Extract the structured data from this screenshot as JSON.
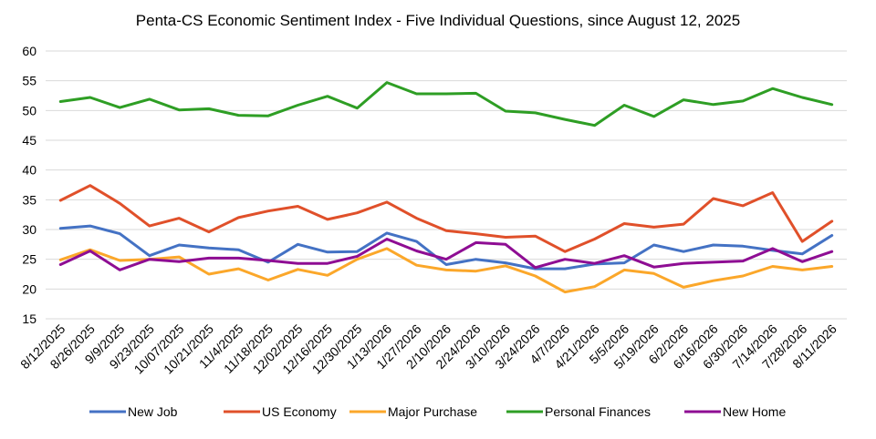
{
  "chart_data": {
    "type": "line",
    "title": "Penta-CS Economic Sentiment Index - Five Individual Questions, since August 12, 2025",
    "xlabel": "",
    "ylabel": "",
    "ylim": [
      15,
      60
    ],
    "yticks": [
      15,
      20,
      25,
      30,
      35,
      40,
      45,
      50,
      55,
      60
    ],
    "grid": true,
    "legend_position": "bottom",
    "categories": [
      "8/12/2025",
      "8/26/2025",
      "9/9/2025",
      "9/23/2025",
      "10/07/2025",
      "10/21/2025",
      "11/4/2025",
      "11/18/2025",
      "12/02/2025",
      "12/16/2025",
      "12/30/2025",
      "1/13/2026",
      "1/27/2026",
      "2/10/2026",
      "2/24/2026",
      "3/10/2026",
      "3/24/2026",
      "4/7/2026",
      "4/21/2026",
      "5/5/2026",
      "5/19/2026",
      "6/2/2026",
      "6/16/2026",
      "6/30/2026",
      "7/14/2026",
      "7/28/2026",
      "8/11/2026"
    ],
    "series": [
      {
        "name": "New Job",
        "color": "#4472C4",
        "values": [
          30.2,
          30.6,
          29.3,
          25.6,
          27.4,
          26.9,
          26.6,
          24.5,
          27.5,
          26.2,
          26.3,
          29.4,
          28.0,
          24.1,
          25.0,
          24.4,
          23.4,
          23.4,
          24.2,
          24.4,
          27.4,
          26.3,
          27.4,
          27.2,
          26.5,
          25.9,
          29.0
        ]
      },
      {
        "name": "US Economy",
        "color": "#E0502A",
        "values": [
          34.9,
          37.4,
          34.4,
          30.6,
          31.9,
          29.6,
          32.0,
          33.1,
          33.9,
          31.7,
          32.8,
          34.6,
          31.9,
          29.8,
          29.3,
          28.7,
          28.9,
          26.3,
          28.4,
          31.0,
          30.4,
          30.9,
          35.2,
          34.0,
          36.2,
          28.0,
          31.4
        ]
      },
      {
        "name": "Major Purchase",
        "color": "#FBA72A",
        "values": [
          24.9,
          26.6,
          24.8,
          25.0,
          25.4,
          22.5,
          23.4,
          21.5,
          23.3,
          22.3,
          25.0,
          26.8,
          24.0,
          23.2,
          23.0,
          23.9,
          22.2,
          19.5,
          20.4,
          23.2,
          22.6,
          20.3,
          21.4,
          22.2,
          23.8,
          23.2,
          23.8
        ]
      },
      {
        "name": "Personal Finances",
        "color": "#2E9E24",
        "values": [
          51.5,
          52.2,
          50.5,
          51.9,
          50.1,
          50.3,
          49.2,
          49.1,
          50.9,
          52.4,
          50.4,
          54.7,
          52.8,
          52.8,
          52.9,
          49.9,
          49.6,
          48.5,
          47.5,
          50.9,
          49.0,
          51.8,
          51.0,
          51.6,
          53.7,
          52.2,
          51.0
        ]
      },
      {
        "name": "New Home",
        "color": "#8E0D93",
        "values": [
          24.1,
          26.4,
          23.2,
          25.0,
          24.6,
          25.2,
          25.2,
          24.8,
          24.3,
          24.3,
          25.5,
          28.4,
          26.4,
          25.0,
          27.8,
          27.5,
          23.6,
          25.0,
          24.3,
          25.6,
          23.7,
          24.3,
          24.5,
          24.7,
          26.8,
          24.6,
          26.3
        ]
      }
    ]
  }
}
